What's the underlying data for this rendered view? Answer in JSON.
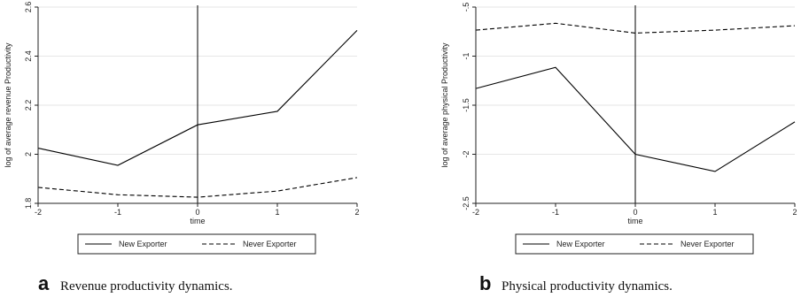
{
  "chart_data": [
    {
      "type": "line",
      "x": [
        -2,
        -1,
        0,
        1,
        2
      ],
      "xticks": [
        "-2",
        "-1",
        "0",
        "1",
        "2"
      ],
      "yticks": [
        "1.8",
        "2",
        "2.2",
        "2.4",
        "2.6"
      ],
      "xlim": [
        -2,
        2
      ],
      "ylim": [
        1.8,
        2.6
      ],
      "xlabel": "time",
      "ylabel": "log of average revenue Productivity",
      "vline_x": 0,
      "grid": "horizontal",
      "legend_position": "bottom",
      "series": [
        {
          "name": "New Exporter",
          "style": "solid",
          "values": [
            2.025,
            1.955,
            2.12,
            2.175,
            2.505
          ]
        },
        {
          "name": "Never Exporter",
          "style": "dashed",
          "values": [
            1.865,
            1.835,
            1.825,
            1.85,
            1.905
          ]
        }
      ],
      "caption_letter": "a",
      "caption": "Revenue productivity dynamics."
    },
    {
      "type": "line",
      "x": [
        -2,
        -1,
        0,
        1,
        2
      ],
      "xticks": [
        "-2",
        "-1",
        "0",
        "1",
        "2"
      ],
      "yticks": [
        "-.5",
        "-1",
        "-1.5",
        "-2",
        "-2.5"
      ],
      "ytick_values": [
        -0.5,
        -1,
        -1.5,
        -2,
        -2.5
      ],
      "xlim": [
        -2,
        2
      ],
      "ylim": [
        -2.5,
        -0.5
      ],
      "xlabel": "time",
      "ylabel": "log of average physical Productivity",
      "vline_x": 0,
      "grid": "horizontal",
      "legend_position": "bottom",
      "series": [
        {
          "name": "New Exporter",
          "style": "solid",
          "values": [
            -1.33,
            -1.115,
            -2.0,
            -2.175,
            -1.67
          ]
        },
        {
          "name": "Never Exporter",
          "style": "dashed",
          "values": [
            -0.735,
            -0.665,
            -0.765,
            -0.735,
            -0.69
          ]
        }
      ],
      "caption_letter": "b",
      "caption": "Physical productivity dynamics."
    }
  ],
  "colors": {
    "line": "#000000",
    "grid": "#e6e6e6",
    "axis": "#222222"
  }
}
